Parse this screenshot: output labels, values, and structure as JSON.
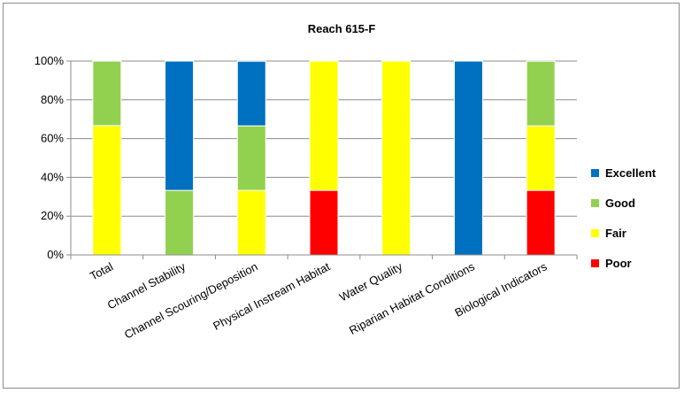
{
  "chart_data": {
    "type": "bar",
    "stacked": true,
    "percent": true,
    "title": "Reach 615-F",
    "categories": [
      "Total",
      "Channel Stability",
      "Channel Scouring/Deposition",
      "Physical Instream Habitat",
      "Water Quality",
      "Riparian Habitat Conditions",
      "Biological Indicators"
    ],
    "series": [
      {
        "name": "Poor",
        "color": "#ff0000",
        "values": [
          0,
          0,
          0,
          33.3,
          0,
          0,
          33.3
        ]
      },
      {
        "name": "Fair",
        "color": "#ffff00",
        "values": [
          66.7,
          0,
          33.3,
          66.7,
          100,
          0,
          33.3
        ]
      },
      {
        "name": "Good",
        "color": "#92d050",
        "values": [
          33.3,
          33.3,
          33.3,
          0,
          0,
          0,
          33.3
        ]
      },
      {
        "name": "Excellent",
        "color": "#0070c0",
        "values": [
          0,
          66.7,
          33.3,
          0,
          0,
          100,
          0
        ]
      }
    ],
    "ylim": [
      0,
      100
    ],
    "yticks": [
      "0%",
      "20%",
      "40%",
      "60%",
      "80%",
      "100%"
    ],
    "legend": {
      "position": "right",
      "order": [
        "Excellent",
        "Good",
        "Fair",
        "Poor"
      ]
    },
    "grid": true
  }
}
